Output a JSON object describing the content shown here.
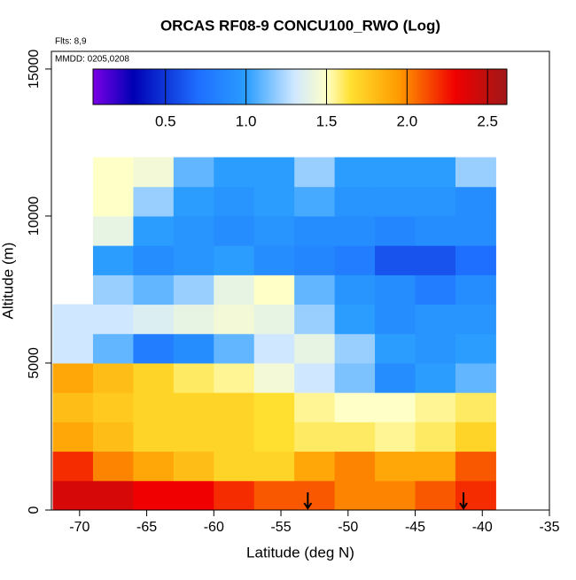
{
  "chart_data": {
    "type": "heatmap",
    "title": "ORCAS RF08-9 CONCU100_RWO (Log)",
    "annotations": [
      "Flts: 8,9",
      "MMDD: 0205,0208"
    ],
    "xlabel": "Latitude (deg N)",
    "ylabel": "Altitude (m)",
    "xlim": [
      -72.1,
      -35
    ],
    "ylim": [
      0,
      15600
    ],
    "xticks": [
      -70,
      -65,
      -60,
      -55,
      -50,
      -45,
      -40,
      -35
    ],
    "yticks": [
      0,
      5000,
      10000,
      15000
    ],
    "lat_edges": [
      -72,
      -69,
      -66,
      -63,
      -60,
      -57,
      -54,
      -51,
      -48,
      -45,
      -42,
      -39
    ],
    "alt_edges": [
      0,
      1000,
      2000,
      3000,
      4000,
      5000,
      6000,
      7000,
      8000,
      9000,
      10000,
      11000,
      12000
    ],
    "z": [
      [
        2.4,
        2.4,
        2.3,
        2.3,
        2.2,
        2.1,
        2.1,
        2.0,
        2.0,
        2.1,
        2.2
      ],
      [
        2.2,
        2.0,
        1.9,
        1.8,
        1.7,
        1.7,
        1.9,
        2.0,
        1.9,
        1.9,
        2.1
      ],
      [
        1.9,
        1.8,
        1.7,
        1.7,
        1.7,
        1.65,
        1.6,
        1.6,
        1.55,
        1.6,
        1.7
      ],
      [
        1.8,
        1.75,
        1.7,
        1.7,
        1.7,
        1.65,
        1.55,
        1.5,
        1.5,
        1.55,
        1.6
      ],
      [
        1.9,
        1.8,
        1.7,
        1.6,
        1.55,
        1.45,
        1.3,
        1.15,
        0.9,
        1.0,
        1.1
      ],
      [
        1.3,
        1.1,
        0.8,
        0.9,
        1.1,
        1.3,
        1.4,
        1.2,
        1.0,
        0.95,
        1.0
      ],
      [
        1.3,
        1.3,
        1.35,
        1.4,
        1.45,
        1.4,
        1.2,
        1.0,
        0.9,
        0.95,
        0.95
      ],
      [
        null,
        1.2,
        1.1,
        1.2,
        1.4,
        1.5,
        1.1,
        0.95,
        0.9,
        0.8,
        0.9
      ],
      [
        null,
        1.0,
        0.9,
        0.95,
        1.0,
        0.9,
        0.85,
        0.8,
        0.6,
        0.6,
        0.7
      ],
      [
        null,
        1.4,
        1.0,
        0.95,
        0.9,
        0.95,
        0.9,
        0.9,
        0.85,
        0.9,
        0.9
      ],
      [
        null,
        1.5,
        1.2,
        1.0,
        0.95,
        1.0,
        1.05,
        0.95,
        0.95,
        0.95,
        0.9
      ],
      [
        null,
        1.5,
        1.45,
        1.1,
        1.0,
        1.0,
        1.2,
        1.0,
        1.0,
        1.0,
        1.2
      ]
    ],
    "arrows_x": [
      -53,
      -41.4
    ],
    "clim": [
      0.05,
      2.62
    ],
    "colorscale": [
      [
        0.05,
        "#7a00e6"
      ],
      [
        0.3,
        "#0000b4"
      ],
      [
        0.7,
        "#1e6eff"
      ],
      [
        1.0,
        "#2a9dff"
      ],
      [
        1.3,
        "#cfe8ff"
      ],
      [
        1.5,
        "#ffffc8"
      ],
      [
        1.65,
        "#ffe030"
      ],
      [
        1.95,
        "#ff9a00"
      ],
      [
        2.3,
        "#f00000"
      ],
      [
        2.62,
        "#a01818"
      ]
    ],
    "cticks": [
      0.5,
      {
        "value": 1,
        "label": "1.0"
      },
      1.5,
      {
        "value": 2,
        "label": "2.0"
      },
      2.5
    ]
  }
}
